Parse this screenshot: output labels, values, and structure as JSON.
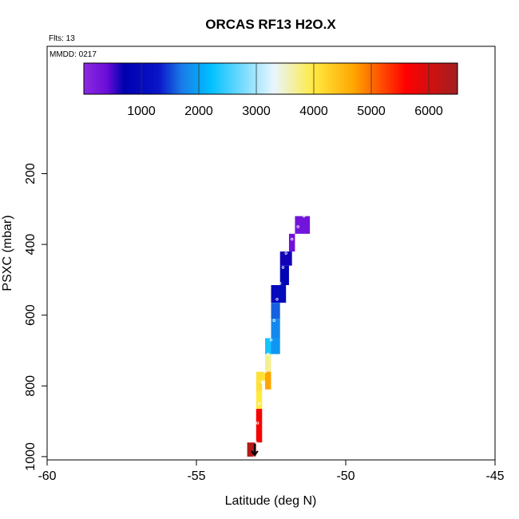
{
  "chart_data": {
    "type": "heatmap",
    "title": "ORCAS RF13 H2O.X",
    "flights_label": "Flts: 13",
    "date_label": "MMDD: 0217",
    "xlabel": "Latitude (deg N)",
    "ylabel": "PSXC (mbar)",
    "xlim": [
      -60,
      -45
    ],
    "ylim": [
      1000,
      0
    ],
    "x_ticks": [
      -60,
      -55,
      -50,
      -45
    ],
    "x_tick_labels": [
      "-60",
      "-55",
      "-50",
      "-45"
    ],
    "y_ticks": [
      200,
      400,
      600,
      800,
      1000
    ],
    "y_tick_labels": [
      "200",
      "400",
      "600",
      "800",
      "1000"
    ],
    "colorbar": {
      "range": [
        0,
        6500
      ],
      "ticks": [
        1000,
        2000,
        3000,
        4000,
        5000,
        6000
      ],
      "tick_labels": [
        "1000",
        "2000",
        "3000",
        "4000",
        "5000",
        "6000"
      ],
      "stops": [
        {
          "v": 0,
          "color": "#8a2be2"
        },
        {
          "v": 400,
          "color": "#6a0dd8"
        },
        {
          "v": 700,
          "color": "#0000b0"
        },
        {
          "v": 1300,
          "color": "#0a14c8"
        },
        {
          "v": 1700,
          "color": "#1a7ae8"
        },
        {
          "v": 2200,
          "color": "#00bfff"
        },
        {
          "v": 3300,
          "color": "#e8f6ff"
        },
        {
          "v": 4000,
          "color": "#ffea40"
        },
        {
          "v": 4700,
          "color": "#ffa500"
        },
        {
          "v": 5600,
          "color": "#ff0000"
        },
        {
          "v": 6500,
          "color": "#a02020"
        }
      ]
    },
    "cells": [
      {
        "lat0": -51.7,
        "lat1": -51.2,
        "p0": 320,
        "p1": 370,
        "value": 300
      },
      {
        "lat0": -51.9,
        "lat1": -51.7,
        "p0": 370,
        "p1": 420,
        "value": 350
      },
      {
        "lat0": -52.2,
        "lat1": -51.8,
        "p0": 420,
        "p1": 460,
        "value": 650
      },
      {
        "lat0": -52.2,
        "lat1": -51.9,
        "p0": 460,
        "p1": 515,
        "value": 800
      },
      {
        "lat0": -52.5,
        "lat1": -52.0,
        "p0": 515,
        "p1": 565,
        "value": 1000
      },
      {
        "lat0": -52.5,
        "lat1": -52.2,
        "p0": 565,
        "p1": 610,
        "value": 1600
      },
      {
        "lat0": -52.5,
        "lat1": -52.2,
        "p0": 610,
        "p1": 665,
        "value": 1800
      },
      {
        "lat0": -52.7,
        "lat1": -52.5,
        "p0": 665,
        "p1": 710,
        "value": 2300
      },
      {
        "lat0": -52.5,
        "lat1": -52.2,
        "p0": 665,
        "p1": 710,
        "value": 1900
      },
      {
        "lat0": -52.7,
        "lat1": -52.5,
        "p0": 710,
        "p1": 760,
        "value": 3700
      },
      {
        "lat0": -53.0,
        "lat1": -52.7,
        "p0": 760,
        "p1": 785,
        "value": 4100
      },
      {
        "lat0": -52.7,
        "lat1": -52.5,
        "p0": 760,
        "p1": 810,
        "value": 4700
      },
      {
        "lat0": -53.0,
        "lat1": -52.8,
        "p0": 785,
        "p1": 815,
        "value": 4100
      },
      {
        "lat0": -53.0,
        "lat1": -52.8,
        "p0": 815,
        "p1": 865,
        "value": 4000
      },
      {
        "lat0": -53.0,
        "lat1": -52.8,
        "p0": 865,
        "p1": 910,
        "value": 5700
      },
      {
        "lat0": -53.0,
        "lat1": -52.8,
        "p0": 910,
        "p1": 960,
        "value": 5700
      },
      {
        "lat0": -53.3,
        "lat1": -53.0,
        "p0": 960,
        "p1": 1000,
        "value": 6300
      }
    ],
    "track": [
      {
        "lat": -51.4,
        "p": 320
      },
      {
        "lat": -51.6,
        "p": 350
      },
      {
        "lat": -51.8,
        "p": 385
      },
      {
        "lat": -52.0,
        "p": 425
      },
      {
        "lat": -52.1,
        "p": 465
      },
      {
        "lat": -52.2,
        "p": 510
      },
      {
        "lat": -52.3,
        "p": 555
      },
      {
        "lat": -52.4,
        "p": 615
      },
      {
        "lat": -52.5,
        "p": 670
      },
      {
        "lat": -52.6,
        "p": 710
      },
      {
        "lat": -52.7,
        "p": 760
      },
      {
        "lat": -52.8,
        "p": 790
      },
      {
        "lat": -52.9,
        "p": 850
      },
      {
        "lat": -52.95,
        "p": 905
      },
      {
        "lat": -53.0,
        "p": 960
      },
      {
        "lat": -53.05,
        "p": 1000
      }
    ]
  }
}
